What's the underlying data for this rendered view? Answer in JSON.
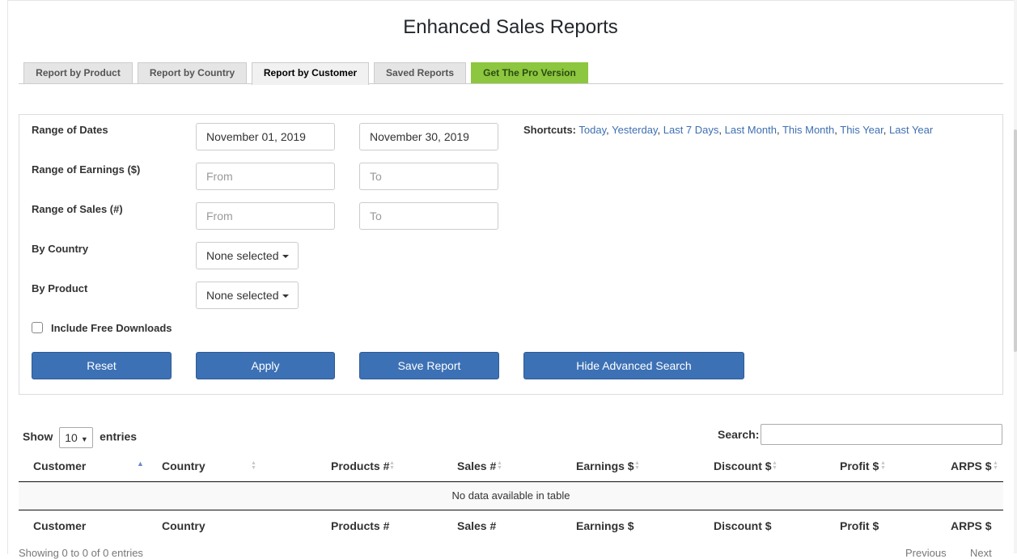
{
  "title": "Enhanced Sales Reports",
  "tabs": [
    {
      "label": "Report by Product"
    },
    {
      "label": "Report by Country"
    },
    {
      "label": "Report by Customer"
    },
    {
      "label": "Saved Reports"
    },
    {
      "label": "Get The Pro Version"
    }
  ],
  "filters": {
    "dates_label": "Range of Dates",
    "date_from": "November 01, 2019",
    "date_to": "November 30, 2019",
    "earnings_label": "Range of Earnings ($)",
    "earnings_from_placeholder": "From",
    "earnings_to_placeholder": "To",
    "sales_label": "Range of Sales (#)",
    "sales_from_placeholder": "From",
    "sales_to_placeholder": "To",
    "country_label": "By Country",
    "country_value": "None selected",
    "product_label": "By Product",
    "product_value": "None selected",
    "free_downloads_label": "Include Free Downloads"
  },
  "shortcuts": {
    "label": "Shortcuts:",
    "links": [
      "Today",
      "Yesterday",
      "Last 7 Days",
      "Last Month",
      "This Month",
      "This Year",
      "Last Year"
    ]
  },
  "buttons": {
    "reset": "Reset",
    "apply": "Apply",
    "save": "Save Report",
    "hide": "Hide Advanced Search"
  },
  "table": {
    "show": "Show",
    "entries_value": "10",
    "entries": "entries",
    "search_label": "Search:",
    "columns": [
      "Customer",
      "Country",
      "Products #",
      "Sales #",
      "Earnings $",
      "Discount $",
      "Profit $",
      "ARPS $"
    ],
    "empty_message": "No data available in table",
    "info": "Showing 0 to 0 of 0 entries",
    "previous": "Previous",
    "next": "Next"
  },
  "colors": {
    "primary_button": "#3d71b5",
    "pro_tab": "#8dc63f",
    "link": "#3e6fb1"
  }
}
